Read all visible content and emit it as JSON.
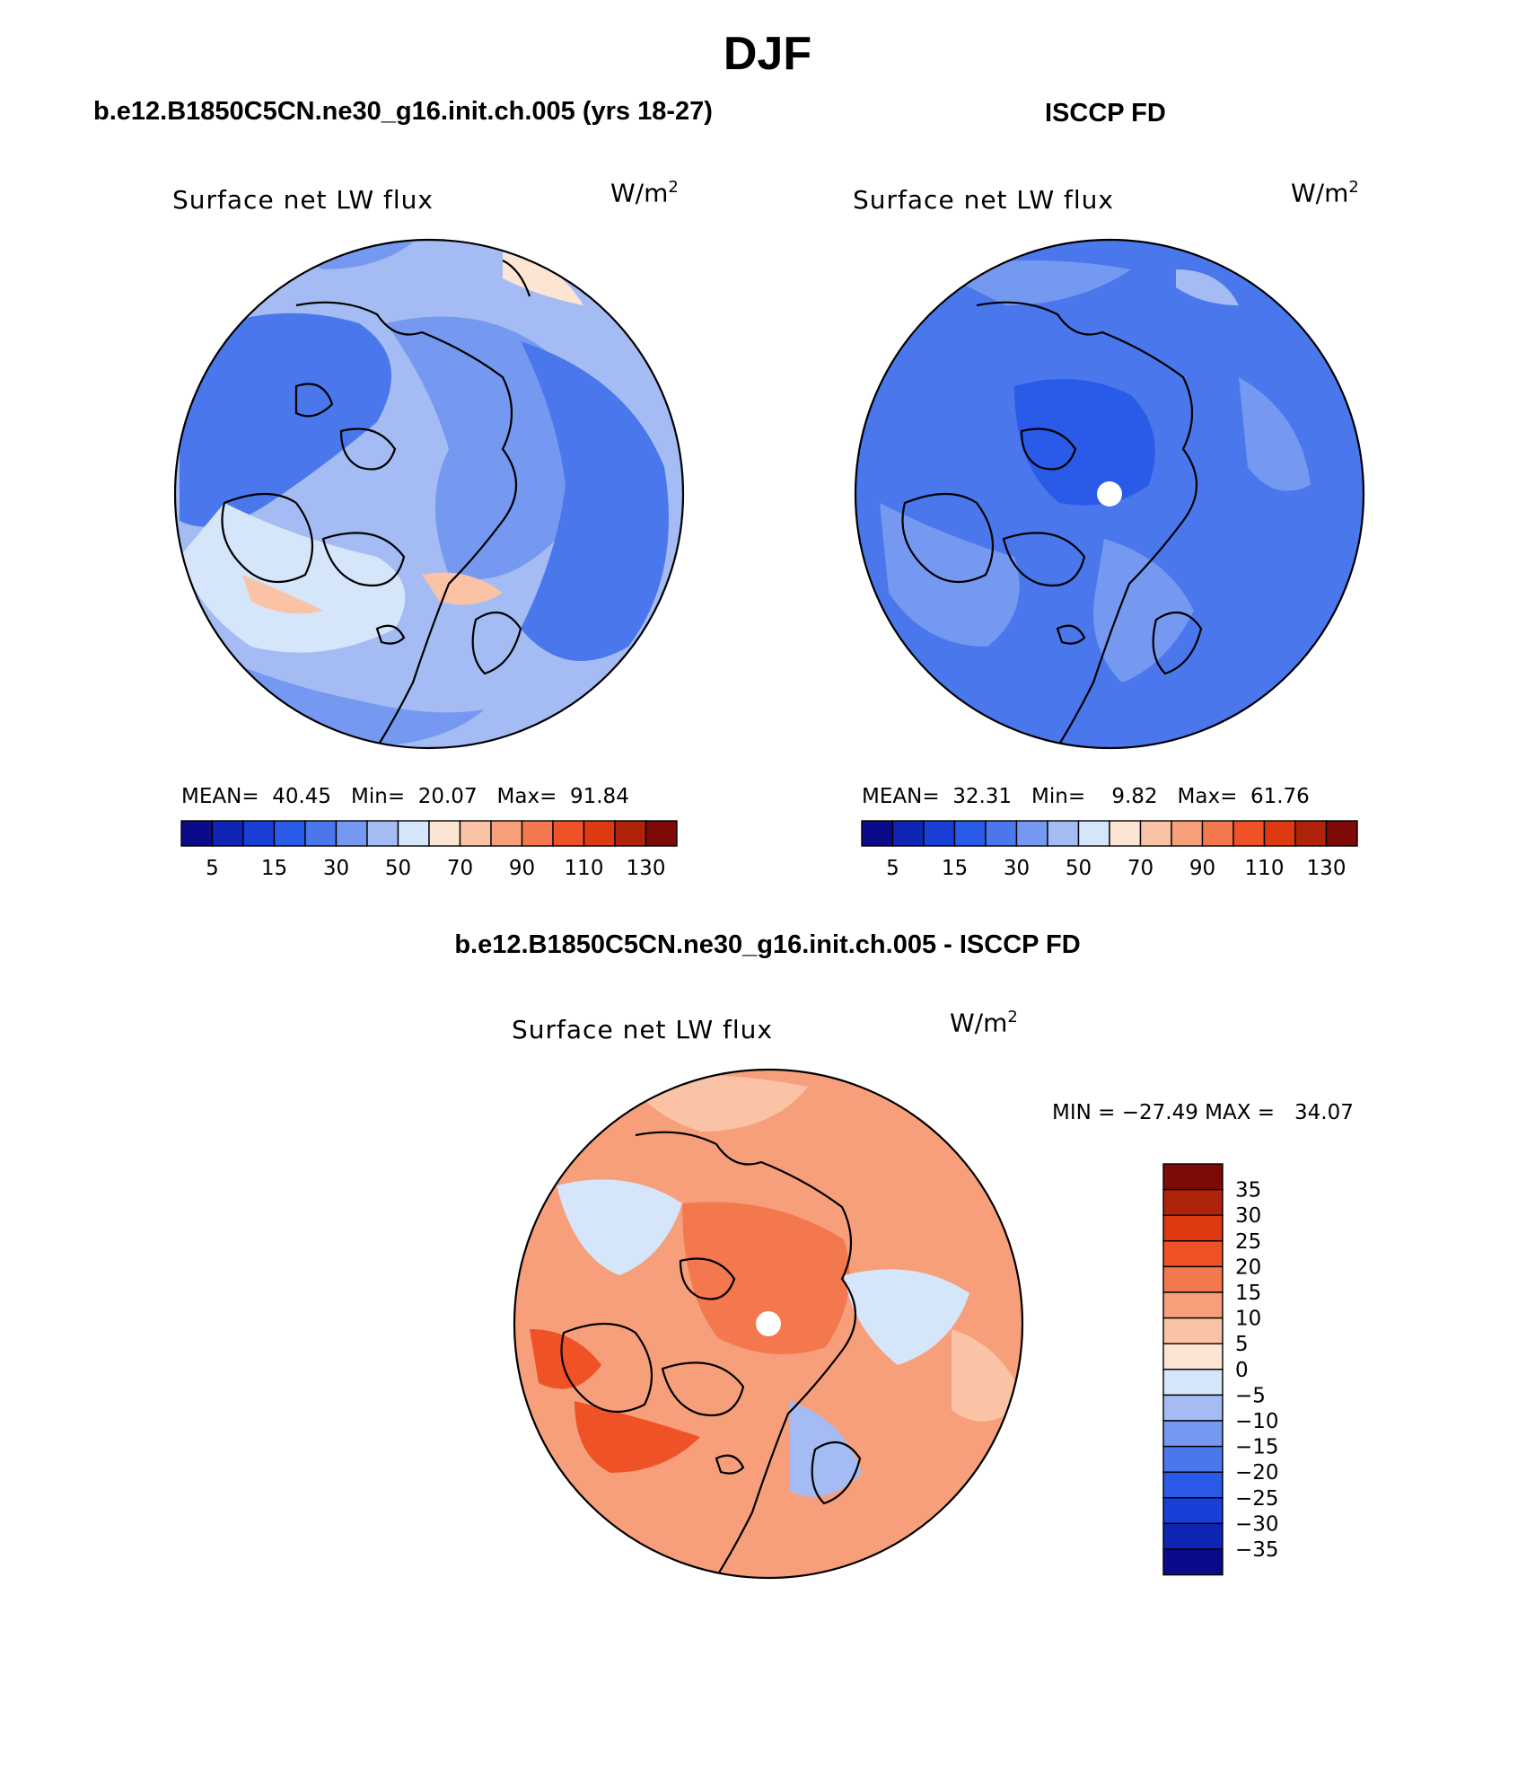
{
  "figure": {
    "season": "DJF",
    "diff_title": "b.e12.B1850C5CN.ne30_g16.init.ch.005 - ISCCP FD"
  },
  "panels": [
    {
      "heading": "b.e12.B1850C5CN.ne30_g16.init.ch.005 (yrs 18-27)",
      "variable": "Surface net LW flux",
      "units_base": "W/m",
      "units_sup": "2",
      "stats": {
        "mean_label": "MEAN=",
        "mean": "40.45",
        "min_label": "Min=",
        "min": "20.07",
        "max_label": "Max=",
        "max": "91.84"
      }
    },
    {
      "heading": "ISCCP FD",
      "variable": "Surface net LW flux",
      "units_base": "W/m",
      "units_sup": "2",
      "stats": {
        "mean_label": "MEAN=",
        "mean": "32.31",
        "min_label": "Min=",
        "min": "9.82",
        "max_label": "Max=",
        "max": "61.76"
      }
    },
    {
      "variable": "Surface net LW flux",
      "units_base": "W/m",
      "units_sup": "2",
      "stats_text": "MIN = −27.49 MAX =   34.07"
    }
  ],
  "colorbar_abs": {
    "colors": [
      "#0b0b8a",
      "#0f26b4",
      "#1840d6",
      "#2a5ae8",
      "#4a77ec",
      "#7598f0",
      "#a4bcf3",
      "#d6e6fa",
      "#fde5d3",
      "#fbc3a6",
      "#f79f7b",
      "#f3784e",
      "#ef5227",
      "#dd3a12",
      "#b0230b",
      "#7d0a06"
    ],
    "tick_labels": [
      "5",
      "15",
      "30",
      "50",
      "70",
      "90",
      "110",
      "130"
    ]
  },
  "colorbar_diff": {
    "colors": [
      "#7d0a06",
      "#b0230b",
      "#dd3a12",
      "#ef5227",
      "#f3784e",
      "#f79f7b",
      "#fbc3a6",
      "#fde5d3",
      "#d6e6fa",
      "#a4bcf3",
      "#7598f0",
      "#4a77ec",
      "#2a5ae8",
      "#1840d6",
      "#0f26b4",
      "#0b0b8a"
    ],
    "tick_labels": [
      "35",
      "30",
      "25",
      "20",
      "15",
      "10",
      "5",
      "0",
      "−5",
      "−10",
      "−15",
      "−20",
      "−25",
      "−30",
      "−35"
    ]
  },
  "map_colors": {
    "model_base": "#a4bcf3",
    "obs_base": "#4a77ec",
    "diff_base": "#f79f7b",
    "pole_fill": "#ffffff",
    "coast": "#000000"
  }
}
